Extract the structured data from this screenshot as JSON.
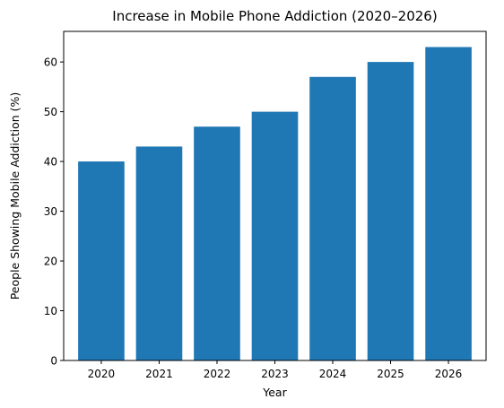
{
  "chart_data": {
    "type": "bar",
    "title": "Increase in Mobile Phone Addiction (2020–2026)",
    "xlabel": "Year",
    "ylabel": "People Showing Mobile Addiction (%)",
    "categories": [
      "2020",
      "2021",
      "2022",
      "2023",
      "2024",
      "2025",
      "2026"
    ],
    "values": [
      40,
      43,
      47,
      50,
      57,
      60,
      63
    ],
    "ylim": [
      0,
      66.15
    ],
    "yticks": [
      0,
      10,
      20,
      30,
      40,
      50,
      60
    ],
    "bar_color": "#1f77b4",
    "grid": false,
    "legend": "none"
  }
}
